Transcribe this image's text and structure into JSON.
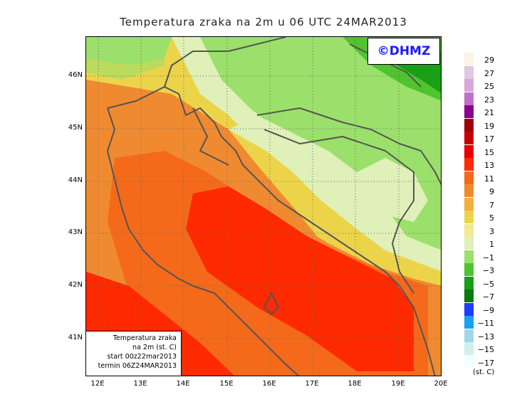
{
  "title": "Temperatura zraka na 2m u 06 UTC 24MAR2013",
  "copyright": "©DHMZ",
  "info_box": {
    "line1": "Temperatura zraka",
    "line2": "na 2m (st. C)",
    "line3": "start 00z22mar2013",
    "line4": "termin 06Z24MAR2013"
  },
  "lat_labels": [
    "46N",
    "45N",
    "44N",
    "43N",
    "42N",
    "41N"
  ],
  "lon_labels": [
    "12E",
    "13E",
    "14E",
    "15E",
    "16E",
    "17E",
    "18E",
    "19E",
    "20E"
  ],
  "legend": {
    "units": "(st. C)",
    "values": [
      "29",
      "27",
      "25",
      "23",
      "21",
      "19",
      "17",
      "15",
      "13",
      "11",
      "9",
      "7",
      "5",
      "3",
      "1",
      "−1",
      "−3",
      "−5",
      "−7",
      "−9",
      "−11",
      "−13",
      "−15",
      "−17"
    ],
    "colors": [
      "#fdf3e6",
      "#e0c8e0",
      "#d8a8d8",
      "#c070c8",
      "#8a008a",
      "#a00000",
      "#c80000",
      "#e60000",
      "#ff2a00",
      "#f46a1a",
      "#f08a30",
      "#f2b040",
      "#ecd44a",
      "#f4e890",
      "#dff0b8",
      "#9be06a",
      "#4ec42e",
      "#18a018",
      "#0a7a0a",
      "#1c3cff",
      "#1aa0f0",
      "#a0d8e8",
      "#d0f0f0",
      "#f0ffff"
    ]
  }
}
